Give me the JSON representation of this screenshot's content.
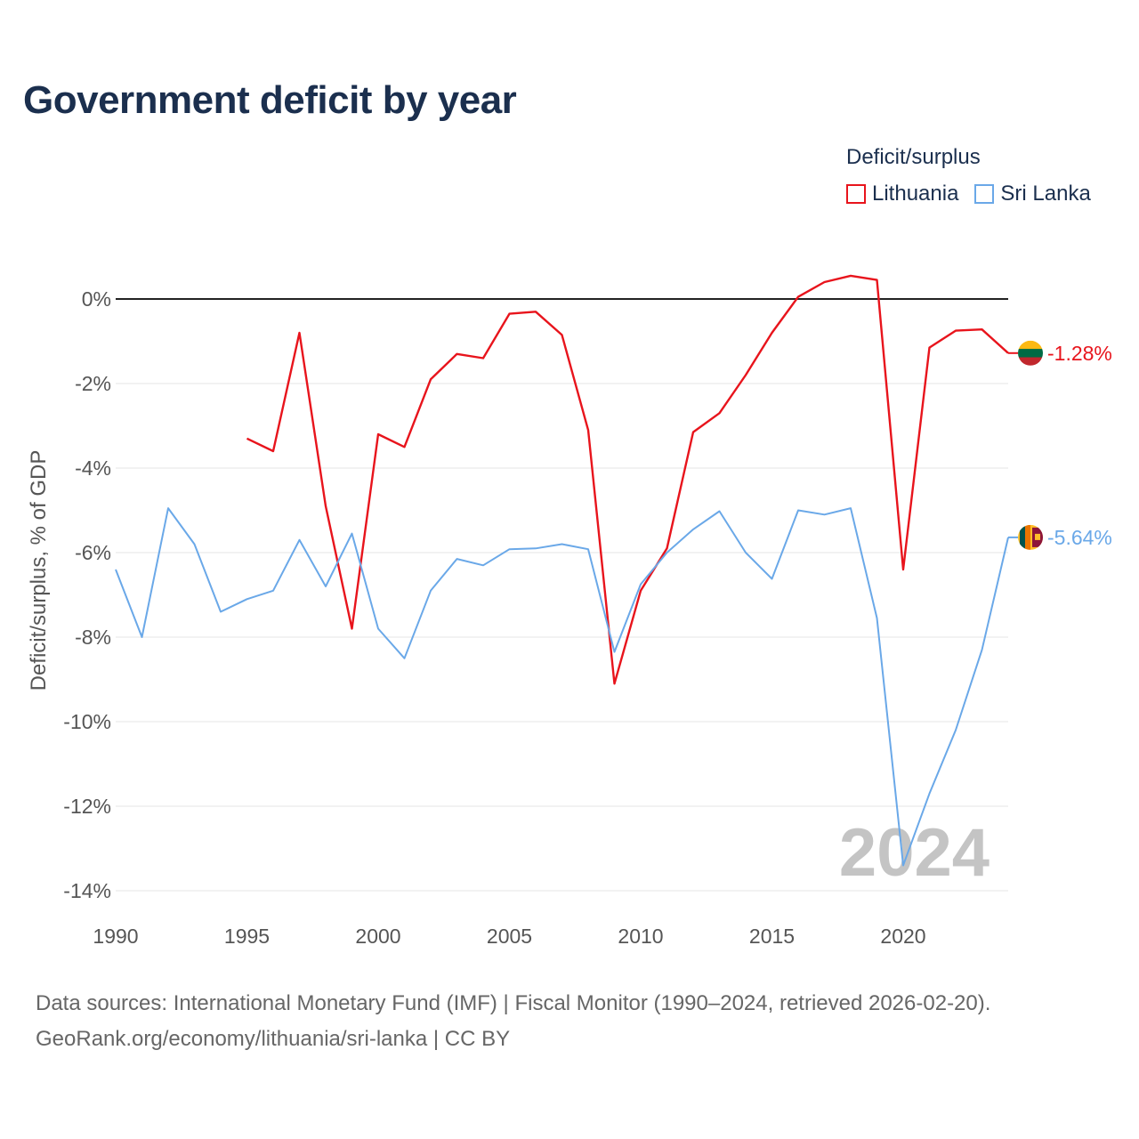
{
  "title": "Government deficit by year",
  "legend": {
    "title": "Deficit/surplus",
    "items": [
      {
        "label": "Lithuania",
        "color": "#e8141c"
      },
      {
        "label": "Sri Lanka",
        "color": "#6aa8e8"
      }
    ]
  },
  "footer": {
    "line1": "Data sources: International Monetary Fund (IMF) | Fiscal Monitor (1990–2024, retrieved 2026-02-20).",
    "line2": "GeoRank.org/economy/lithuania/sri-lanka | CC BY"
  },
  "chart_data": {
    "type": "line",
    "title": "Government deficit by year",
    "xlabel": "",
    "ylabel": "Deficit/surplus, % of GDP",
    "xlim": [
      1990,
      2024
    ],
    "ylim": [
      -14,
      0
    ],
    "xticks": [
      1990,
      1995,
      2000,
      2005,
      2010,
      2015,
      2020
    ],
    "yticks": [
      0,
      -2,
      -4,
      -6,
      -8,
      -10,
      -12,
      -14
    ],
    "ytick_labels": [
      "0%",
      "-2%",
      "-4%",
      "-6%",
      "-8%",
      "-10%",
      "-12%",
      "-14%"
    ],
    "watermark": "2024",
    "legend_position": "top-right",
    "series": [
      {
        "name": "Lithuania",
        "color": "#e8141c",
        "end_label": "-1.28%",
        "x": [
          1995,
          1996,
          1997,
          1998,
          1999,
          2000,
          2001,
          2002,
          2003,
          2004,
          2005,
          2006,
          2007,
          2008,
          2009,
          2010,
          2011,
          2012,
          2013,
          2014,
          2015,
          2016,
          2017,
          2018,
          2019,
          2020,
          2021,
          2022,
          2023,
          2024
        ],
        "y": [
          -3.3,
          -3.6,
          -0.8,
          -4.9,
          -7.8,
          -3.2,
          -3.5,
          -1.9,
          -1.3,
          -1.4,
          -0.35,
          -0.3,
          -0.85,
          -3.1,
          -9.1,
          -6.9,
          -5.9,
          -3.15,
          -2.7,
          -1.8,
          -0.8,
          0.05,
          0.4,
          0.55,
          0.45,
          -6.4,
          -1.15,
          -0.75,
          -0.72,
          -1.28
        ]
      },
      {
        "name": "Sri Lanka",
        "color": "#6aa8e8",
        "end_label": "-5.64%",
        "x": [
          1990,
          1991,
          1992,
          1993,
          1994,
          1995,
          1996,
          1997,
          1998,
          1999,
          2000,
          2001,
          2002,
          2003,
          2004,
          2005,
          2006,
          2007,
          2008,
          2009,
          2010,
          2011,
          2012,
          2013,
          2014,
          2015,
          2016,
          2017,
          2018,
          2019,
          2020,
          2021,
          2022,
          2023,
          2024
        ],
        "y": [
          -6.4,
          -8.0,
          -4.95,
          -5.8,
          -7.4,
          -7.1,
          -6.9,
          -5.7,
          -6.8,
          -5.55,
          -7.8,
          -8.5,
          -6.9,
          -6.15,
          -6.3,
          -5.92,
          -5.9,
          -5.8,
          -5.92,
          -8.35,
          -6.75,
          -6.0,
          -5.45,
          -5.02,
          -6.0,
          -6.62,
          -5.0,
          -5.1,
          -4.95,
          -7.55,
          -13.4,
          -11.7,
          -10.2,
          -8.3,
          -5.64
        ]
      }
    ]
  }
}
